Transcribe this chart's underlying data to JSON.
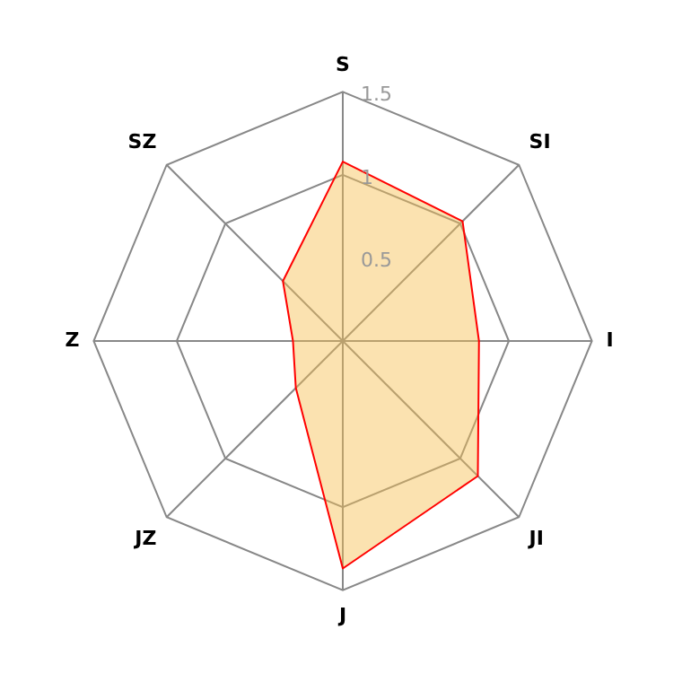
{
  "chart_data": {
    "type": "radar",
    "categories": [
      "S",
      "SI",
      "I",
      "JI",
      "J",
      "JZ",
      "Z",
      "SZ"
    ],
    "series": [
      {
        "color": "#ff0000",
        "values": [
          1.08,
          1.02,
          0.82,
          1.15,
          1.37,
          0.4,
          0.3,
          0.51
        ]
      }
    ],
    "ylim": [
      0,
      1.5
    ],
    "yticks": [
      0.5,
      1,
      1.5
    ],
    "grid": true,
    "legend": false,
    "marker": "none"
  }
}
